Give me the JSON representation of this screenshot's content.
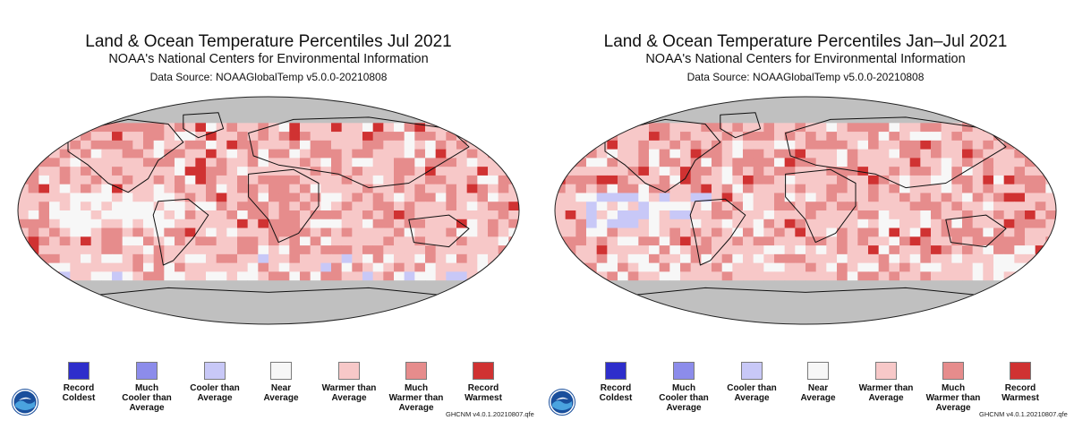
{
  "colors": {
    "record_coldest": "#2e2ecb",
    "much_cooler": "#8c8ceb",
    "cooler": "#c8c8f7",
    "near": "#f7f7f7",
    "warmer": "#f7c8c8",
    "much_warmer": "#e68c8c",
    "record_warmest": "#d03232",
    "no_data": "#c0c0c0",
    "land_line": "#111111"
  },
  "panels": [
    {
      "id": "jul",
      "title": "Land & Ocean Temperature Percentiles Jul 2021",
      "agency": "NOAA's National Centers for Environmental Information",
      "data_source": "Data Source: NOAAGlobalTemp v5.0.0-20210808",
      "credit": "GHCNM v4.0.1.20210807.qfe",
      "logo_icon": "noaa-logo-icon"
    },
    {
      "id": "janjul",
      "title": "Land & Ocean Temperature Percentiles Jan–Jul 2021",
      "agency": "NOAA's National Centers for Environmental Information",
      "data_source": "Data Source: NOAAGlobalTemp v5.0.0-20210808",
      "credit": "GHCNM v4.0.1.20210807.qfe",
      "logo_icon": "noaa-logo-icon"
    }
  ],
  "legend": [
    {
      "label": "Record\nColdest",
      "color": "#2e2ecb"
    },
    {
      "label": "Much\nCooler than\nAverage",
      "color": "#8c8ceb"
    },
    {
      "label": "Cooler than\nAverage",
      "color": "#c8c8f7"
    },
    {
      "label": "Near\nAverage",
      "color": "#f7f7f7"
    },
    {
      "label": "Warmer than\nAverage",
      "color": "#f7c8c8"
    },
    {
      "label": "Much\nWarmer than\nAverage",
      "color": "#e68c8c"
    },
    {
      "label": "Record\nWarmest",
      "color": "#d03232"
    }
  ]
}
